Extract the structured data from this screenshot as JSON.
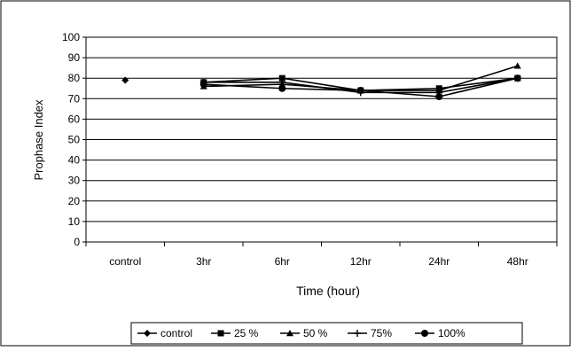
{
  "chart_data": {
    "type": "line",
    "title": "",
    "xlabel": "Time (hour)",
    "ylabel": "Prophase Index",
    "categories": [
      "control",
      "3hr",
      "6hr",
      "12hr",
      "24hr",
      "48hr"
    ],
    "ylim": [
      0,
      100
    ],
    "yticks": [
      0,
      10,
      20,
      30,
      40,
      50,
      60,
      70,
      80,
      90,
      100
    ],
    "grid": true,
    "legend_position": "bottom",
    "series": [
      {
        "name": "control",
        "marker": "diamond",
        "values": [
          79,
          null,
          null,
          null,
          null,
          null
        ]
      },
      {
        "name": "25 %",
        "marker": "square",
        "values": [
          null,
          78,
          80,
          74,
          75,
          80
        ]
      },
      {
        "name": "50 %",
        "marker": "triangle",
        "values": [
          null,
          76,
          77,
          74,
          74,
          86
        ]
      },
      {
        "name": "75%",
        "marker": "plus",
        "values": [
          null,
          78,
          78,
          73,
          73,
          80
        ]
      },
      {
        "name": "100%",
        "marker": "circle",
        "values": [
          null,
          77,
          75,
          74,
          71,
          80
        ]
      }
    ],
    "colors": {
      "line": "#000000",
      "grid": "#000000",
      "background": "#ffffff"
    }
  }
}
